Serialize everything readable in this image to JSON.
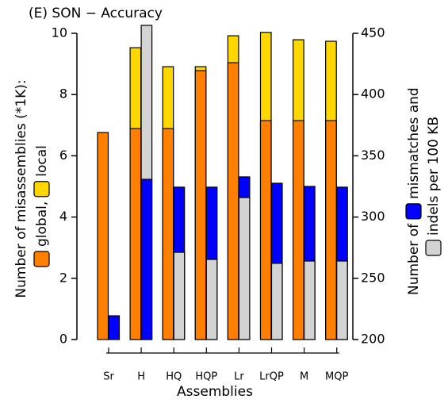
{
  "chart_data": {
    "type": "overlap_bar",
    "title": "(E) SON − Accuracy",
    "x_label": "Assemblies",
    "y_label": "Number of misassemblies (*1K):",
    "y2_label": "Number of",
    "categories": [
      "Sr",
      "H",
      "HQ",
      "HQP",
      "Lr",
      "LrQP",
      "M",
      "MQP"
    ],
    "series": [
      {
        "name": "global,",
        "color": "#ff8000",
        "values": [
          6.76,
          6.89,
          6.89,
          8.78,
          9.04,
          7.15,
          7.15,
          7.15
        ]
      },
      {
        "name": "local",
        "color": "#ffd700",
        "values": [
          0,
          9.53,
          8.91,
          8.91,
          9.92,
          10.03,
          9.79,
          9.74
        ]
      },
      {
        "name": "mismatches and",
        "color": "#0000ff",
        "axis": "y2",
        "values": [
          219.4,
          330.8,
          324.4,
          324.4,
          332.8,
          327.6,
          325,
          324.4
        ]
      },
      {
        "name": "indels per 100 KB",
        "color": "#d3d3d3",
        "axis": "y2",
        "values": [
          200,
          456.5,
          271.2,
          265.4,
          315.9,
          262.2,
          264.1,
          264.1
        ]
      }
    ],
    "ylim": [
      0,
      10
    ],
    "yticks": [
      0,
      2,
      4,
      6,
      8,
      10
    ],
    "y2lim": [
      200,
      450
    ],
    "y2ticks": [
      200,
      250,
      300,
      350,
      400,
      450
    ]
  }
}
